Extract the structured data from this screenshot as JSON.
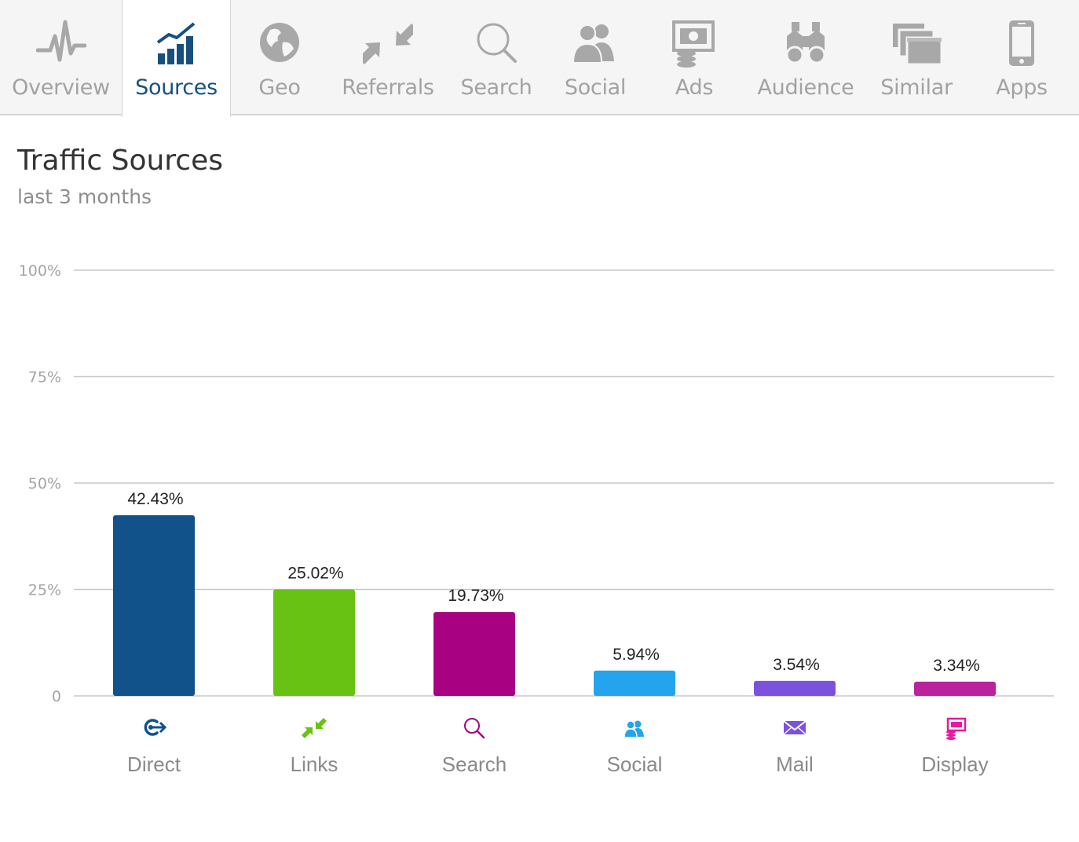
{
  "tabs": [
    {
      "label": "Overview",
      "icon": "heartbeat-icon",
      "active": false
    },
    {
      "label": "Sources",
      "icon": "bar-chart-icon",
      "active": true
    },
    {
      "label": "Geo",
      "icon": "globe-icon",
      "active": false
    },
    {
      "label": "Referrals",
      "icon": "arrows-icon",
      "active": false
    },
    {
      "label": "Search",
      "icon": "magnifier-icon",
      "active": false
    },
    {
      "label": "Social",
      "icon": "users-icon",
      "active": false
    },
    {
      "label": "Ads",
      "icon": "ads-icon",
      "active": false
    },
    {
      "label": "Audience",
      "icon": "binoculars-icon",
      "active": false
    },
    {
      "label": "Similar",
      "icon": "windows-icon",
      "active": false
    },
    {
      "label": "Apps",
      "icon": "phone-icon",
      "active": false
    }
  ],
  "colors": {
    "active_tab": "#17507f",
    "inactive_tab": "#a2a2a2"
  },
  "header": {
    "title": "Traffic Sources",
    "subtitle": "last 3 months"
  },
  "chart_data": {
    "type": "bar",
    "title": "Traffic Sources",
    "subtitle": "last 3 months",
    "ylim": [
      0,
      100
    ],
    "yticks": [
      0,
      25,
      50,
      75,
      100
    ],
    "ytick_labels": [
      "0",
      "25%",
      "50%",
      "75%",
      "100%"
    ],
    "grid": true,
    "categories": [
      "Direct",
      "Links",
      "Search",
      "Social",
      "Mail",
      "Display"
    ],
    "values": [
      42.43,
      25.02,
      19.73,
      5.94,
      3.54,
      3.34
    ],
    "value_labels": [
      "42.43%",
      "25.02%",
      "19.73%",
      "5.94%",
      "3.54%",
      "3.34%"
    ],
    "colors": [
      "#11528a",
      "#67c213",
      "#a80182",
      "#24a4ec",
      "#7b52de",
      "#b9239b"
    ],
    "category_icons": [
      "direct-icon",
      "links-icon",
      "search-icon",
      "social-icon",
      "mail-icon",
      "display-icon"
    ]
  }
}
